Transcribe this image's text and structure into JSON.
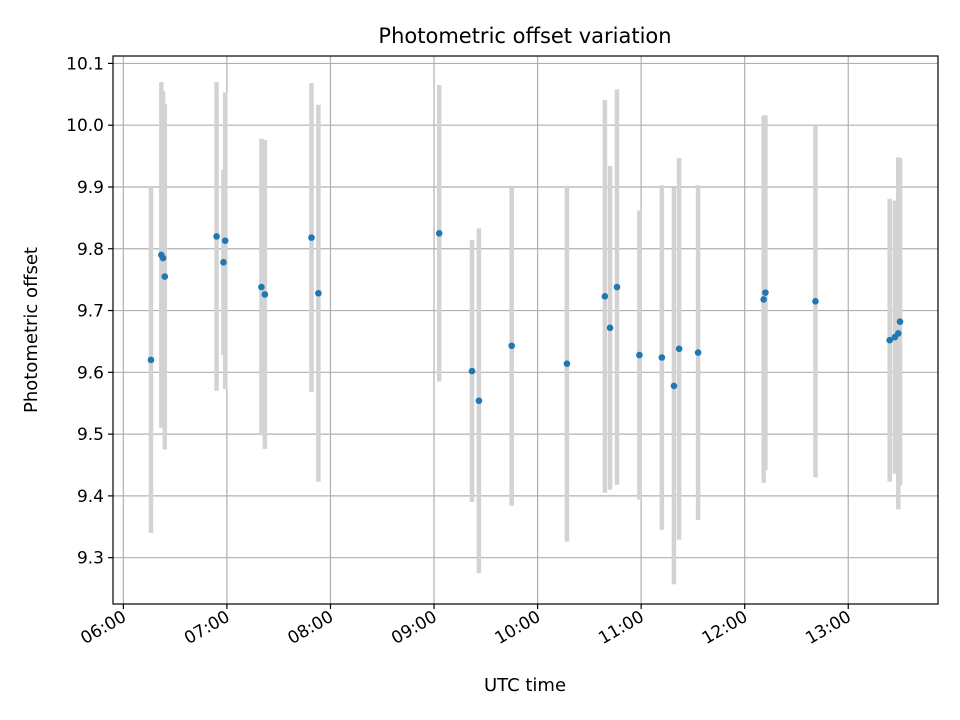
{
  "chart_data": {
    "type": "scatter",
    "title": "Photometric offset variation",
    "xlabel": "UTC time",
    "ylabel": "Photometric offset",
    "x_ticks": [
      "06:00",
      "07:00",
      "08:00",
      "09:00",
      "10:00",
      "11:00",
      "12:00",
      "13:00"
    ],
    "y_ticks": [
      "9.3",
      "9.4",
      "9.5",
      "9.6",
      "9.7",
      "9.8",
      "9.9",
      "10.0",
      "10.1"
    ],
    "xlim": [
      "05:54",
      "13:52"
    ],
    "ylim": [
      9.225,
      10.112
    ],
    "grid": true,
    "point_color": "#1f77b4",
    "errorbar_color": "#d3d3d3",
    "series": [
      {
        "points": [
          {
            "x": "06:16",
            "y": 9.62,
            "err": 0.28
          },
          {
            "x": "06:22",
            "y": 9.79,
            "err": 0.28
          },
          {
            "x": "06:23",
            "y": 9.785,
            "err": 0.27
          },
          {
            "x": "06:24",
            "y": 9.755,
            "err": 0.28
          },
          {
            "x": "06:54",
            "y": 9.82,
            "err": 0.25
          },
          {
            "x": "06:58",
            "y": 9.778,
            "err": 0.15
          },
          {
            "x": "06:59",
            "y": 9.813,
            "err": 0.24
          },
          {
            "x": "07:20",
            "y": 9.738,
            "err": 0.24
          },
          {
            "x": "07:22",
            "y": 9.726,
            "err": 0.25
          },
          {
            "x": "07:49",
            "y": 9.818,
            "err": 0.25
          },
          {
            "x": "07:53",
            "y": 9.728,
            "err": 0.305
          },
          {
            "x": "09:03",
            "y": 9.825,
            "err": 0.24
          },
          {
            "x": "09:22",
            "y": 9.602,
            "err": 0.212
          },
          {
            "x": "09:26",
            "y": 9.554,
            "err": 0.279
          },
          {
            "x": "09:45",
            "y": 9.643,
            "err": 0.259
          },
          {
            "x": "10:17",
            "y": 9.614,
            "err": 0.288
          },
          {
            "x": "10:39",
            "y": 9.723,
            "err": 0.318
          },
          {
            "x": "10:42",
            "y": 9.672,
            "err": 0.262
          },
          {
            "x": "10:46",
            "y": 9.738,
            "err": 0.32
          },
          {
            "x": "10:59",
            "y": 9.628,
            "err": 0.234
          },
          {
            "x": "11:12",
            "y": 9.624,
            "err": 0.279
          },
          {
            "x": "11:19",
            "y": 9.578,
            "err": 0.321
          },
          {
            "x": "11:22",
            "y": 9.638,
            "err": 0.309
          },
          {
            "x": "11:33",
            "y": 9.632,
            "err": 0.271
          },
          {
            "x": "12:11",
            "y": 9.718,
            "err": 0.297
          },
          {
            "x": "12:12",
            "y": 9.729,
            "err": 0.287
          },
          {
            "x": "12:41",
            "y": 9.715,
            "err": 0.285
          },
          {
            "x": "13:24",
            "y": 9.652,
            "err": 0.229
          },
          {
            "x": "13:27",
            "y": 9.657,
            "err": 0.221
          },
          {
            "x": "13:29",
            "y": 9.663,
            "err": 0.285
          },
          {
            "x": "13:30",
            "y": 9.682,
            "err": 0.265
          }
        ]
      }
    ]
  }
}
